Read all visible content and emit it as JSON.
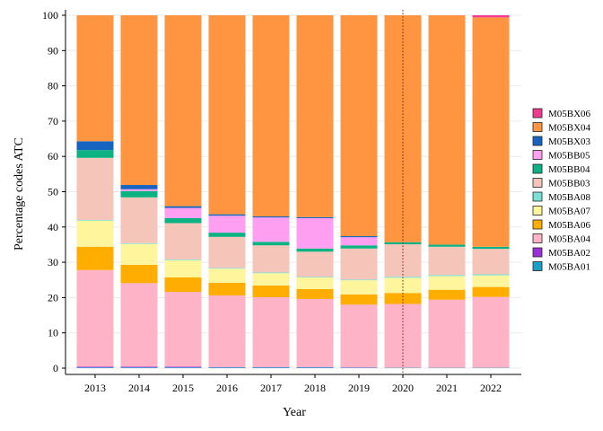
{
  "chart_data": {
    "type": "bar",
    "stacked": true,
    "xlabel": "Year",
    "ylabel": "Percentage codes ATC",
    "ylim": [
      0,
      100
    ],
    "yticks": [
      0,
      10,
      20,
      30,
      40,
      50,
      60,
      70,
      80,
      90,
      100
    ],
    "grid": "horizontal",
    "legend_position": "right",
    "reference_line": {
      "x": "2020",
      "style": "dotted",
      "color": "#8b1a1a"
    },
    "categories": [
      "2013",
      "2014",
      "2015",
      "2016",
      "2017",
      "2018",
      "2019",
      "2020",
      "2021",
      "2022"
    ],
    "series": [
      {
        "name": "M05BA01",
        "color": "#1a9fc9",
        "values": [
          0.2,
          0.2,
          0.2,
          0.2,
          0.2,
          0.2,
          0.1,
          0.1,
          0.1,
          0.1
        ]
      },
      {
        "name": "M05BA02",
        "color": "#9b30d9",
        "values": [
          0.2,
          0.2,
          0.2,
          0.1,
          0.1,
          0.1,
          0.1,
          0.0,
          0.0,
          0.0
        ]
      },
      {
        "name": "M05BA04",
        "color": "#ffb3c6",
        "values": [
          27.4,
          23.7,
          21.2,
          20.3,
          19.8,
          19.3,
          17.8,
          18.1,
          19.3,
          20.1
        ]
      },
      {
        "name": "M05BA06",
        "color": "#ffad00",
        "values": [
          6.6,
          5.2,
          4.1,
          3.6,
          3.3,
          2.8,
          2.9,
          3.1,
          2.8,
          2.8
        ]
      },
      {
        "name": "M05BA07",
        "color": "#fff59d",
        "values": [
          7.4,
          5.9,
          4.9,
          4.0,
          3.5,
          3.3,
          4.0,
          4.3,
          3.9,
          3.3
        ]
      },
      {
        "name": "M05BA08",
        "color": "#78e0d7",
        "values": [
          0.2,
          0.2,
          0.2,
          0.2,
          0.2,
          0.2,
          0.2,
          0.3,
          0.3,
          0.3
        ]
      },
      {
        "name": "M05BB03",
        "color": "#f6c5b9",
        "values": [
          17.6,
          13.0,
          10.3,
          8.8,
          7.7,
          7.1,
          8.8,
          9.2,
          8.0,
          7.2
        ]
      },
      {
        "name": "M05BB04",
        "color": "#0db283",
        "values": [
          2.2,
          1.8,
          1.4,
          1.2,
          1.0,
          0.9,
          0.9,
          0.6,
          0.6,
          0.6
        ]
      },
      {
        "name": "M05BB05",
        "color": "#ff9ff2",
        "values": [
          0.0,
          0.5,
          2.9,
          4.8,
          6.9,
          8.6,
          2.3,
          0.0,
          0.0,
          0.0
        ]
      },
      {
        "name": "M05BX03",
        "color": "#1565c0",
        "values": [
          2.5,
          1.2,
          0.5,
          0.4,
          0.3,
          0.3,
          0.3,
          0.0,
          0.0,
          0.0
        ]
      },
      {
        "name": "M05BX04",
        "color": "#ff9540",
        "values": [
          35.7,
          48.1,
          54.1,
          56.4,
          57.0,
          57.2,
          62.6,
          64.3,
          65.0,
          65.0
        ]
      },
      {
        "name": "M05BX06",
        "color": "#f0398f",
        "values": [
          0.0,
          0.0,
          0.0,
          0.0,
          0.0,
          0.0,
          0.0,
          0.0,
          0.0,
          0.6
        ]
      }
    ],
    "legend_order": [
      "M05BX06",
      "M05BX04",
      "M05BX03",
      "M05BB05",
      "M05BB04",
      "M05BB03",
      "M05BA08",
      "M05BA07",
      "M05BA06",
      "M05BA04",
      "M05BA02",
      "M05BA01"
    ]
  }
}
